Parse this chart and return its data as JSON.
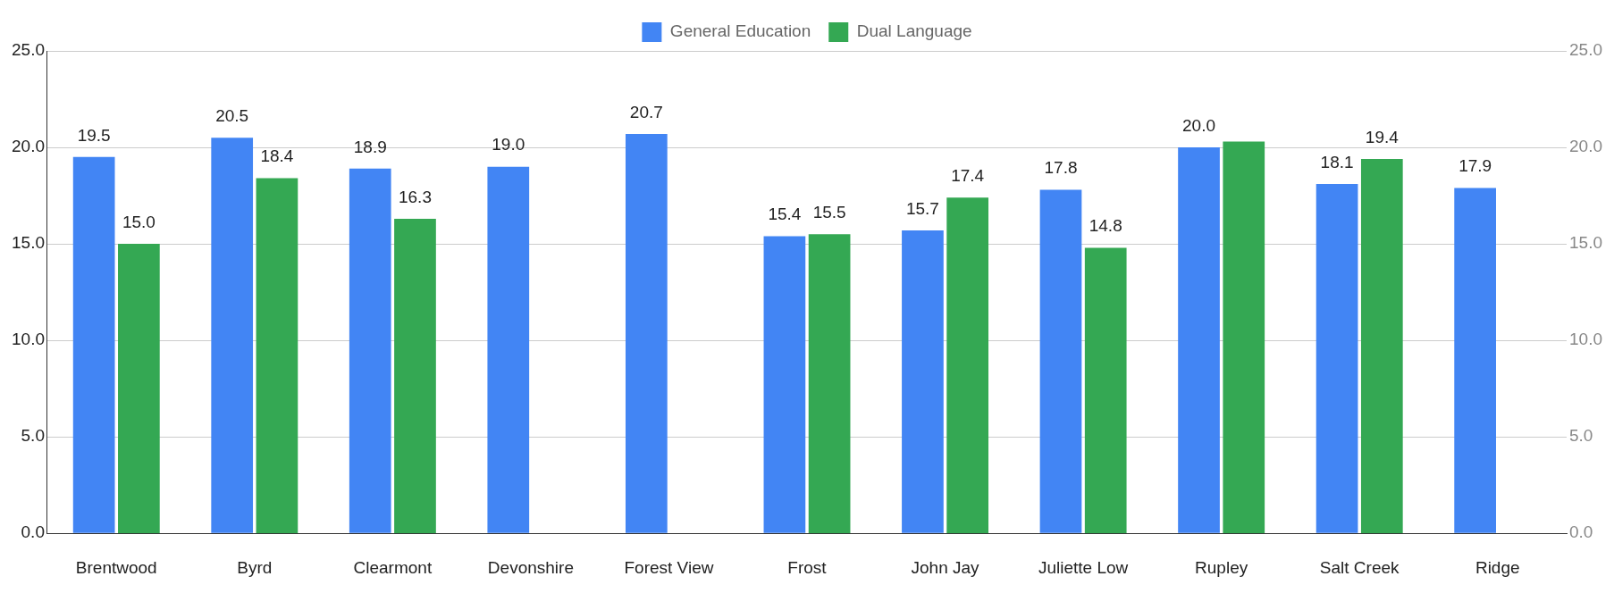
{
  "chart_data": {
    "type": "bar",
    "categories": [
      "Brentwood",
      "Byrd",
      "Clearmont",
      "Devonshire",
      "Forest View",
      "Frost",
      "John Jay",
      "Juliette Low",
      "Rupley",
      "Salt Creek",
      "Ridge"
    ],
    "series": [
      {
        "name": "General Education",
        "color": "#4285f4",
        "values": [
          19.5,
          20.5,
          18.9,
          19.0,
          20.7,
          15.4,
          15.7,
          17.8,
          20.0,
          18.1,
          17.9
        ],
        "value_labels": [
          "19.5",
          "20.5",
          "18.9",
          "19.0",
          "20.7",
          "15.4",
          "15.7",
          "17.8",
          "20.0",
          "18.1",
          "17.9"
        ]
      },
      {
        "name": "Dual Language",
        "color": "#34a853",
        "axis": "y2",
        "values": [
          15.0,
          18.4,
          16.3,
          null,
          null,
          15.5,
          17.4,
          14.8,
          20.3,
          19.4,
          null
        ],
        "value_labels": [
          "15.0",
          "18.4",
          "16.3",
          null,
          null,
          "15.5",
          "17.4",
          "14.8",
          null,
          "19.4",
          null
        ]
      }
    ],
    "ylim": [
      0,
      25
    ],
    "yticks": [
      {
        "value": 0,
        "label": "0.0"
      },
      {
        "value": 5,
        "label": "5.0"
      },
      {
        "value": 10,
        "label": "10.0"
      },
      {
        "value": 15,
        "label": "15.0"
      },
      {
        "value": 20,
        "label": "20.0"
      },
      {
        "value": 25,
        "label": "25.0"
      }
    ],
    "y2lim": [
      0,
      25
    ],
    "y2ticks": [
      {
        "value": 0,
        "label": "0.0"
      },
      {
        "value": 5,
        "label": "5.0"
      },
      {
        "value": 10,
        "label": "10.0"
      },
      {
        "value": 15,
        "label": "15.0"
      },
      {
        "value": 20,
        "label": "20.0"
      },
      {
        "value": 25,
        "label": "25.0"
      }
    ],
    "grid": "y",
    "legend": "top"
  }
}
